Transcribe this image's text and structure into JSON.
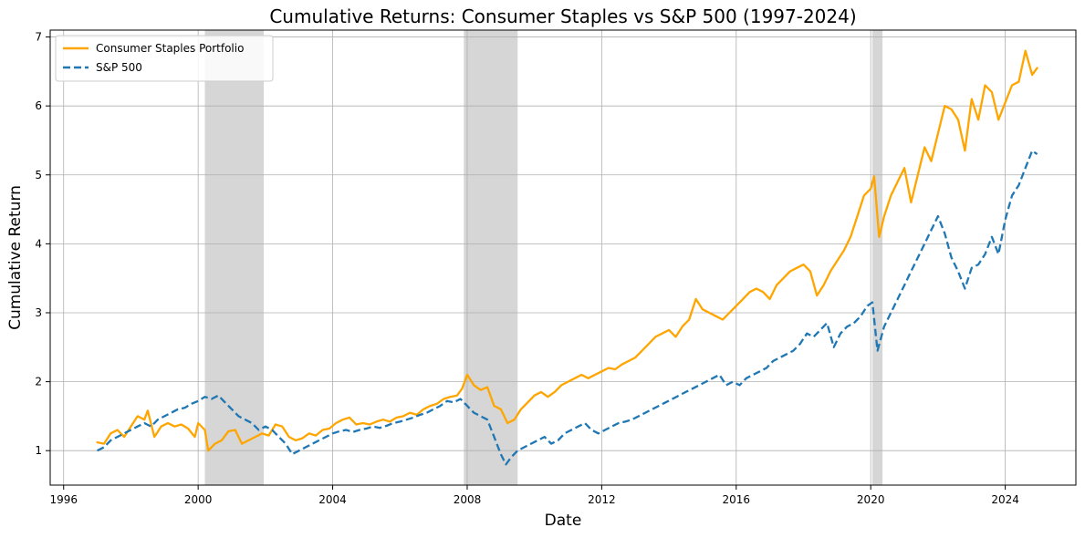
{
  "chart_data": {
    "type": "line",
    "title": "Cumulative Returns: Consumer Staples vs S&P 500 (1997-2024)",
    "xlabel": "Date",
    "ylabel": "Cumulative Return",
    "xlim": [
      1995.6,
      2026.1
    ],
    "ylim": [
      0.5,
      7.1
    ],
    "x_ticks": [
      1996,
      2000,
      2004,
      2008,
      2012,
      2016,
      2020,
      2024
    ],
    "y_ticks": [
      1,
      2,
      3,
      4,
      5,
      6,
      7
    ],
    "grid": true,
    "legend_position": "upper-left",
    "recessions": [
      [
        2000.2,
        2001.95
      ],
      [
        2007.9,
        2009.5
      ],
      [
        2020.05,
        2020.35
      ]
    ],
    "series": [
      {
        "name": "Consumer Staples Portfolio",
        "color": "#ffa500",
        "style": "solid",
        "points": [
          [
            1997.0,
            1.12
          ],
          [
            1997.2,
            1.1
          ],
          [
            1997.4,
            1.25
          ],
          [
            1997.6,
            1.3
          ],
          [
            1997.8,
            1.2
          ],
          [
            1998.0,
            1.35
          ],
          [
            1998.2,
            1.5
          ],
          [
            1998.4,
            1.45
          ],
          [
            1998.5,
            1.58
          ],
          [
            1998.7,
            1.2
          ],
          [
            1998.9,
            1.35
          ],
          [
            1999.1,
            1.4
          ],
          [
            1999.3,
            1.35
          ],
          [
            1999.5,
            1.38
          ],
          [
            1999.7,
            1.32
          ],
          [
            1999.9,
            1.2
          ],
          [
            2000.0,
            1.4
          ],
          [
            2000.2,
            1.3
          ],
          [
            2000.3,
            1.0
          ],
          [
            2000.5,
            1.1
          ],
          [
            2000.7,
            1.15
          ],
          [
            2000.9,
            1.28
          ],
          [
            2001.1,
            1.3
          ],
          [
            2001.3,
            1.1
          ],
          [
            2001.5,
            1.15
          ],
          [
            2001.7,
            1.2
          ],
          [
            2001.9,
            1.25
          ],
          [
            2002.1,
            1.22
          ],
          [
            2002.3,
            1.38
          ],
          [
            2002.5,
            1.35
          ],
          [
            2002.7,
            1.2
          ],
          [
            2002.9,
            1.15
          ],
          [
            2003.1,
            1.18
          ],
          [
            2003.3,
            1.25
          ],
          [
            2003.5,
            1.22
          ],
          [
            2003.7,
            1.3
          ],
          [
            2003.9,
            1.32
          ],
          [
            2004.1,
            1.4
          ],
          [
            2004.3,
            1.45
          ],
          [
            2004.5,
            1.48
          ],
          [
            2004.7,
            1.38
          ],
          [
            2004.9,
            1.4
          ],
          [
            2005.1,
            1.38
          ],
          [
            2005.3,
            1.42
          ],
          [
            2005.5,
            1.45
          ],
          [
            2005.7,
            1.42
          ],
          [
            2005.9,
            1.48
          ],
          [
            2006.1,
            1.5
          ],
          [
            2006.3,
            1.55
          ],
          [
            2006.5,
            1.52
          ],
          [
            2006.7,
            1.6
          ],
          [
            2006.9,
            1.65
          ],
          [
            2007.1,
            1.68
          ],
          [
            2007.3,
            1.75
          ],
          [
            2007.5,
            1.78
          ],
          [
            2007.7,
            1.8
          ],
          [
            2007.85,
            1.9
          ],
          [
            2008.0,
            2.1
          ],
          [
            2008.2,
            1.95
          ],
          [
            2008.4,
            1.88
          ],
          [
            2008.6,
            1.92
          ],
          [
            2008.8,
            1.65
          ],
          [
            2009.0,
            1.6
          ],
          [
            2009.2,
            1.4
          ],
          [
            2009.4,
            1.45
          ],
          [
            2009.6,
            1.6
          ],
          [
            2009.8,
            1.7
          ],
          [
            2010.0,
            1.8
          ],
          [
            2010.2,
            1.85
          ],
          [
            2010.4,
            1.78
          ],
          [
            2010.6,
            1.85
          ],
          [
            2010.8,
            1.95
          ],
          [
            2011.0,
            2.0
          ],
          [
            2011.2,
            2.05
          ],
          [
            2011.4,
            2.1
          ],
          [
            2011.6,
            2.05
          ],
          [
            2011.8,
            2.1
          ],
          [
            2012.0,
            2.15
          ],
          [
            2012.2,
            2.2
          ],
          [
            2012.4,
            2.18
          ],
          [
            2012.6,
            2.25
          ],
          [
            2012.8,
            2.3
          ],
          [
            2013.0,
            2.35
          ],
          [
            2013.2,
            2.45
          ],
          [
            2013.4,
            2.55
          ],
          [
            2013.6,
            2.65
          ],
          [
            2013.8,
            2.7
          ],
          [
            2014.0,
            2.75
          ],
          [
            2014.2,
            2.65
          ],
          [
            2014.4,
            2.8
          ],
          [
            2014.6,
            2.9
          ],
          [
            2014.8,
            3.2
          ],
          [
            2015.0,
            3.05
          ],
          [
            2015.2,
            3.0
          ],
          [
            2015.4,
            2.95
          ],
          [
            2015.6,
            2.9
          ],
          [
            2015.8,
            3.0
          ],
          [
            2016.0,
            3.1
          ],
          [
            2016.2,
            3.2
          ],
          [
            2016.4,
            3.3
          ],
          [
            2016.6,
            3.35
          ],
          [
            2016.8,
            3.3
          ],
          [
            2017.0,
            3.2
          ],
          [
            2017.2,
            3.4
          ],
          [
            2017.4,
            3.5
          ],
          [
            2017.6,
            3.6
          ],
          [
            2017.8,
            3.65
          ],
          [
            2018.0,
            3.7
          ],
          [
            2018.2,
            3.6
          ],
          [
            2018.4,
            3.25
          ],
          [
            2018.6,
            3.4
          ],
          [
            2018.8,
            3.6
          ],
          [
            2019.0,
            3.75
          ],
          [
            2019.2,
            3.9
          ],
          [
            2019.4,
            4.1
          ],
          [
            2019.6,
            4.4
          ],
          [
            2019.8,
            4.7
          ],
          [
            2020.0,
            4.8
          ],
          [
            2020.1,
            4.98
          ],
          [
            2020.25,
            4.1
          ],
          [
            2020.4,
            4.4
          ],
          [
            2020.6,
            4.7
          ],
          [
            2020.8,
            4.9
          ],
          [
            2021.0,
            5.1
          ],
          [
            2021.2,
            4.6
          ],
          [
            2021.4,
            5.0
          ],
          [
            2021.6,
            5.4
          ],
          [
            2021.8,
            5.2
          ],
          [
            2022.0,
            5.6
          ],
          [
            2022.2,
            6.0
          ],
          [
            2022.4,
            5.95
          ],
          [
            2022.6,
            5.8
          ],
          [
            2022.8,
            5.35
          ],
          [
            2023.0,
            6.1
          ],
          [
            2023.2,
            5.8
          ],
          [
            2023.4,
            6.3
          ],
          [
            2023.6,
            6.2
          ],
          [
            2023.8,
            5.8
          ],
          [
            2024.0,
            6.05
          ],
          [
            2024.2,
            6.3
          ],
          [
            2024.4,
            6.35
          ],
          [
            2024.6,
            6.8
          ],
          [
            2024.8,
            6.45
          ],
          [
            2024.95,
            6.55
          ]
        ]
      },
      {
        "name": "S&P 500",
        "color": "#1f77b4",
        "style": "dashed",
        "points": [
          [
            1997.0,
            1.0
          ],
          [
            1997.2,
            1.05
          ],
          [
            1997.4,
            1.15
          ],
          [
            1997.6,
            1.2
          ],
          [
            1997.8,
            1.25
          ],
          [
            1998.0,
            1.3
          ],
          [
            1998.2,
            1.35
          ],
          [
            1998.4,
            1.4
          ],
          [
            1998.6,
            1.35
          ],
          [
            1998.8,
            1.45
          ],
          [
            1999.0,
            1.5
          ],
          [
            1999.2,
            1.55
          ],
          [
            1999.4,
            1.6
          ],
          [
            1999.6,
            1.62
          ],
          [
            1999.8,
            1.68
          ],
          [
            2000.0,
            1.72
          ],
          [
            2000.2,
            1.78
          ],
          [
            2000.4,
            1.75
          ],
          [
            2000.6,
            1.8
          ],
          [
            2000.8,
            1.7
          ],
          [
            2001.0,
            1.6
          ],
          [
            2001.2,
            1.5
          ],
          [
            2001.4,
            1.45
          ],
          [
            2001.6,
            1.4
          ],
          [
            2001.8,
            1.3
          ],
          [
            2002.0,
            1.35
          ],
          [
            2002.2,
            1.3
          ],
          [
            2002.4,
            1.2
          ],
          [
            2002.6,
            1.1
          ],
          [
            2002.8,
            0.95
          ],
          [
            2003.0,
            1.0
          ],
          [
            2003.2,
            1.05
          ],
          [
            2003.4,
            1.1
          ],
          [
            2003.6,
            1.15
          ],
          [
            2003.8,
            1.2
          ],
          [
            2004.0,
            1.25
          ],
          [
            2004.2,
            1.28
          ],
          [
            2004.4,
            1.3
          ],
          [
            2004.6,
            1.27
          ],
          [
            2004.8,
            1.3
          ],
          [
            2005.0,
            1.32
          ],
          [
            2005.2,
            1.35
          ],
          [
            2005.4,
            1.33
          ],
          [
            2005.6,
            1.36
          ],
          [
            2005.8,
            1.4
          ],
          [
            2006.0,
            1.42
          ],
          [
            2006.2,
            1.45
          ],
          [
            2006.4,
            1.48
          ],
          [
            2006.6,
            1.52
          ],
          [
            2006.8,
            1.55
          ],
          [
            2007.0,
            1.6
          ],
          [
            2007.2,
            1.65
          ],
          [
            2007.4,
            1.72
          ],
          [
            2007.6,
            1.7
          ],
          [
            2007.8,
            1.75
          ],
          [
            2008.0,
            1.65
          ],
          [
            2008.2,
            1.55
          ],
          [
            2008.4,
            1.5
          ],
          [
            2008.6,
            1.45
          ],
          [
            2008.8,
            1.2
          ],
          [
            2009.0,
            0.95
          ],
          [
            2009.15,
            0.8
          ],
          [
            2009.3,
            0.9
          ],
          [
            2009.5,
            1.0
          ],
          [
            2009.7,
            1.05
          ],
          [
            2009.9,
            1.1
          ],
          [
            2010.1,
            1.15
          ],
          [
            2010.3,
            1.2
          ],
          [
            2010.5,
            1.1
          ],
          [
            2010.7,
            1.15
          ],
          [
            2010.9,
            1.25
          ],
          [
            2011.1,
            1.3
          ],
          [
            2011.3,
            1.35
          ],
          [
            2011.5,
            1.4
          ],
          [
            2011.7,
            1.3
          ],
          [
            2011.9,
            1.25
          ],
          [
            2012.1,
            1.3
          ],
          [
            2012.3,
            1.35
          ],
          [
            2012.5,
            1.4
          ],
          [
            2012.7,
            1.42
          ],
          [
            2012.9,
            1.45
          ],
          [
            2013.1,
            1.5
          ],
          [
            2013.3,
            1.55
          ],
          [
            2013.5,
            1.6
          ],
          [
            2013.7,
            1.65
          ],
          [
            2013.9,
            1.7
          ],
          [
            2014.1,
            1.75
          ],
          [
            2014.3,
            1.8
          ],
          [
            2014.5,
            1.85
          ],
          [
            2014.7,
            1.9
          ],
          [
            2014.9,
            1.95
          ],
          [
            2015.1,
            2.0
          ],
          [
            2015.3,
            2.05
          ],
          [
            2015.5,
            2.1
          ],
          [
            2015.7,
            1.95
          ],
          [
            2015.9,
            2.0
          ],
          [
            2016.1,
            1.95
          ],
          [
            2016.3,
            2.05
          ],
          [
            2016.5,
            2.1
          ],
          [
            2016.7,
            2.15
          ],
          [
            2016.9,
            2.2
          ],
          [
            2017.1,
            2.3
          ],
          [
            2017.3,
            2.35
          ],
          [
            2017.5,
            2.4
          ],
          [
            2017.7,
            2.45
          ],
          [
            2017.9,
            2.55
          ],
          [
            2018.1,
            2.7
          ],
          [
            2018.3,
            2.65
          ],
          [
            2018.5,
            2.75
          ],
          [
            2018.7,
            2.85
          ],
          [
            2018.9,
            2.5
          ],
          [
            2019.1,
            2.7
          ],
          [
            2019.3,
            2.8
          ],
          [
            2019.5,
            2.85
          ],
          [
            2019.7,
            2.95
          ],
          [
            2019.9,
            3.1
          ],
          [
            2020.05,
            3.15
          ],
          [
            2020.2,
            2.45
          ],
          [
            2020.4,
            2.8
          ],
          [
            2020.6,
            3.0
          ],
          [
            2020.8,
            3.2
          ],
          [
            2021.0,
            3.4
          ],
          [
            2021.2,
            3.6
          ],
          [
            2021.4,
            3.8
          ],
          [
            2021.6,
            4.0
          ],
          [
            2021.8,
            4.2
          ],
          [
            2022.0,
            4.4
          ],
          [
            2022.2,
            4.15
          ],
          [
            2022.4,
            3.8
          ],
          [
            2022.6,
            3.6
          ],
          [
            2022.8,
            3.35
          ],
          [
            2023.0,
            3.65
          ],
          [
            2023.2,
            3.7
          ],
          [
            2023.4,
            3.85
          ],
          [
            2023.6,
            4.1
          ],
          [
            2023.8,
            3.85
          ],
          [
            2024.0,
            4.35
          ],
          [
            2024.2,
            4.7
          ],
          [
            2024.4,
            4.85
          ],
          [
            2024.6,
            5.1
          ],
          [
            2024.8,
            5.35
          ],
          [
            2024.95,
            5.3
          ]
        ]
      }
    ]
  }
}
